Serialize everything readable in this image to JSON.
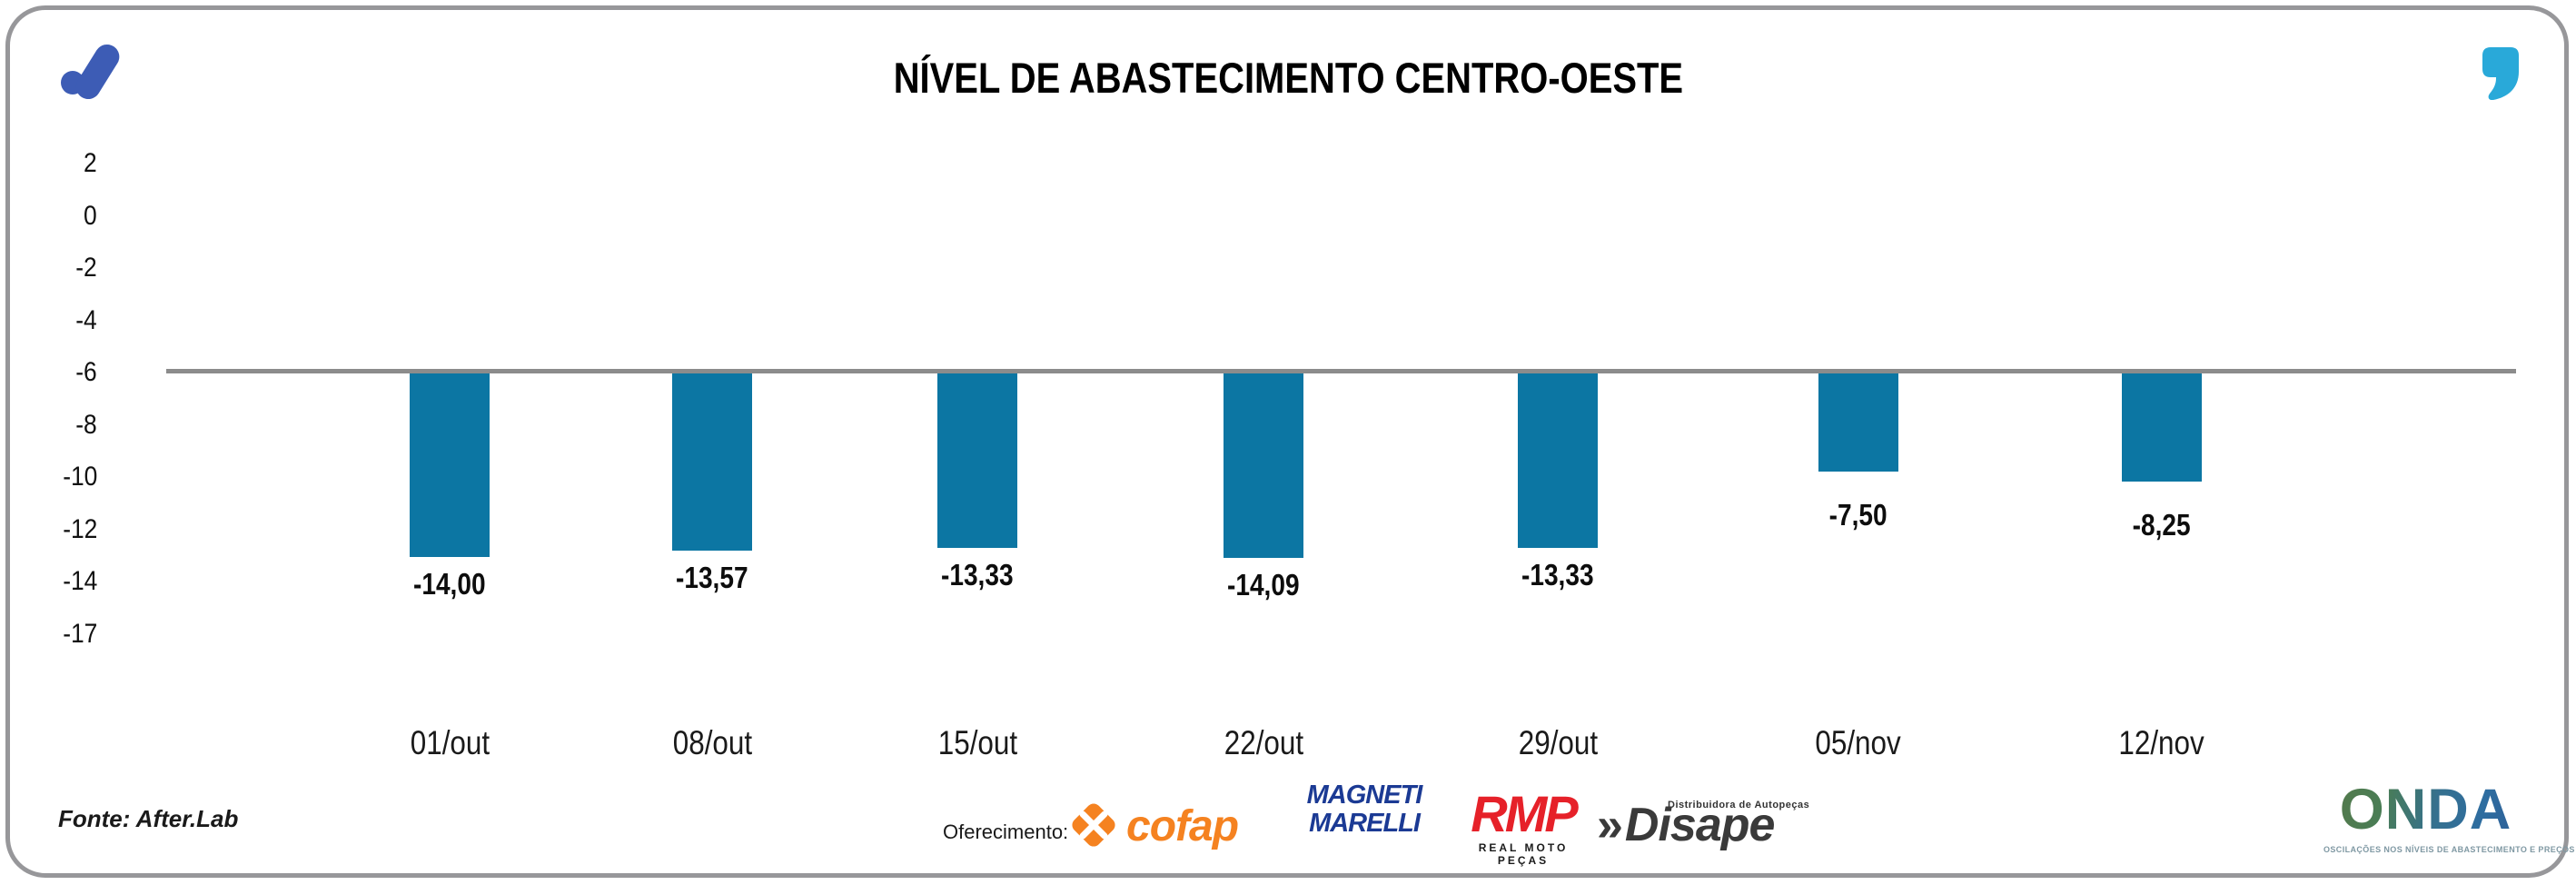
{
  "header": {
    "brand_icon": "afterlab-logo-icon",
    "brand_color": "#3d5cb5",
    "quote_icon_color": "#29a9d9"
  },
  "chart_data": {
    "type": "bar",
    "title": "NÍVEL DE ABASTECIMENTO CENTRO-OESTE",
    "categories": [
      "01/out",
      "08/out",
      "15/out",
      "22/out",
      "29/out",
      "05/nov",
      "12/nov"
    ],
    "values": [
      -14.0,
      -13.57,
      -13.33,
      -14.09,
      -13.33,
      -7.5,
      -8.25
    ],
    "value_labels": [
      "-14,00",
      "-13,57",
      "-13,33",
      "-14,09",
      "-13,33",
      "-7,50",
      "-8,25"
    ],
    "y_tick_labels": [
      "2",
      "0",
      "-2",
      "-4",
      "-6",
      "-8",
      "-10",
      "-12",
      "-14",
      "-17"
    ],
    "ylim": [
      -17,
      2
    ],
    "baseline_value": -6,
    "bar_color": "#0c76a3",
    "baseline_color": "#8c8c8c",
    "grid": false,
    "legend": null,
    "xlabel": "",
    "ylabel": ""
  },
  "footer": {
    "source": "Fonte: After.Lab",
    "sponsor_label": "Oferecimento:",
    "cofap": {
      "name": "cofap",
      "color": "#f58220"
    },
    "magneti": {
      "line1": "MAGNETI",
      "line2": "MARELLI",
      "color": "#1b3a94"
    },
    "rmp": {
      "name": "RMP",
      "sub": "REAL MOTO PEÇAS",
      "color": "#e62129"
    },
    "disape": {
      "prefix": "»",
      "name": "Disape",
      "sub": "Distribuidora de Autopeças",
      "color": "#3a3a3a"
    },
    "onda": {
      "name": "ONDA",
      "tagline": "OSCILAÇÕES NOS NÍVEIS DE ABASTECIMENTO E PREÇOS"
    }
  }
}
